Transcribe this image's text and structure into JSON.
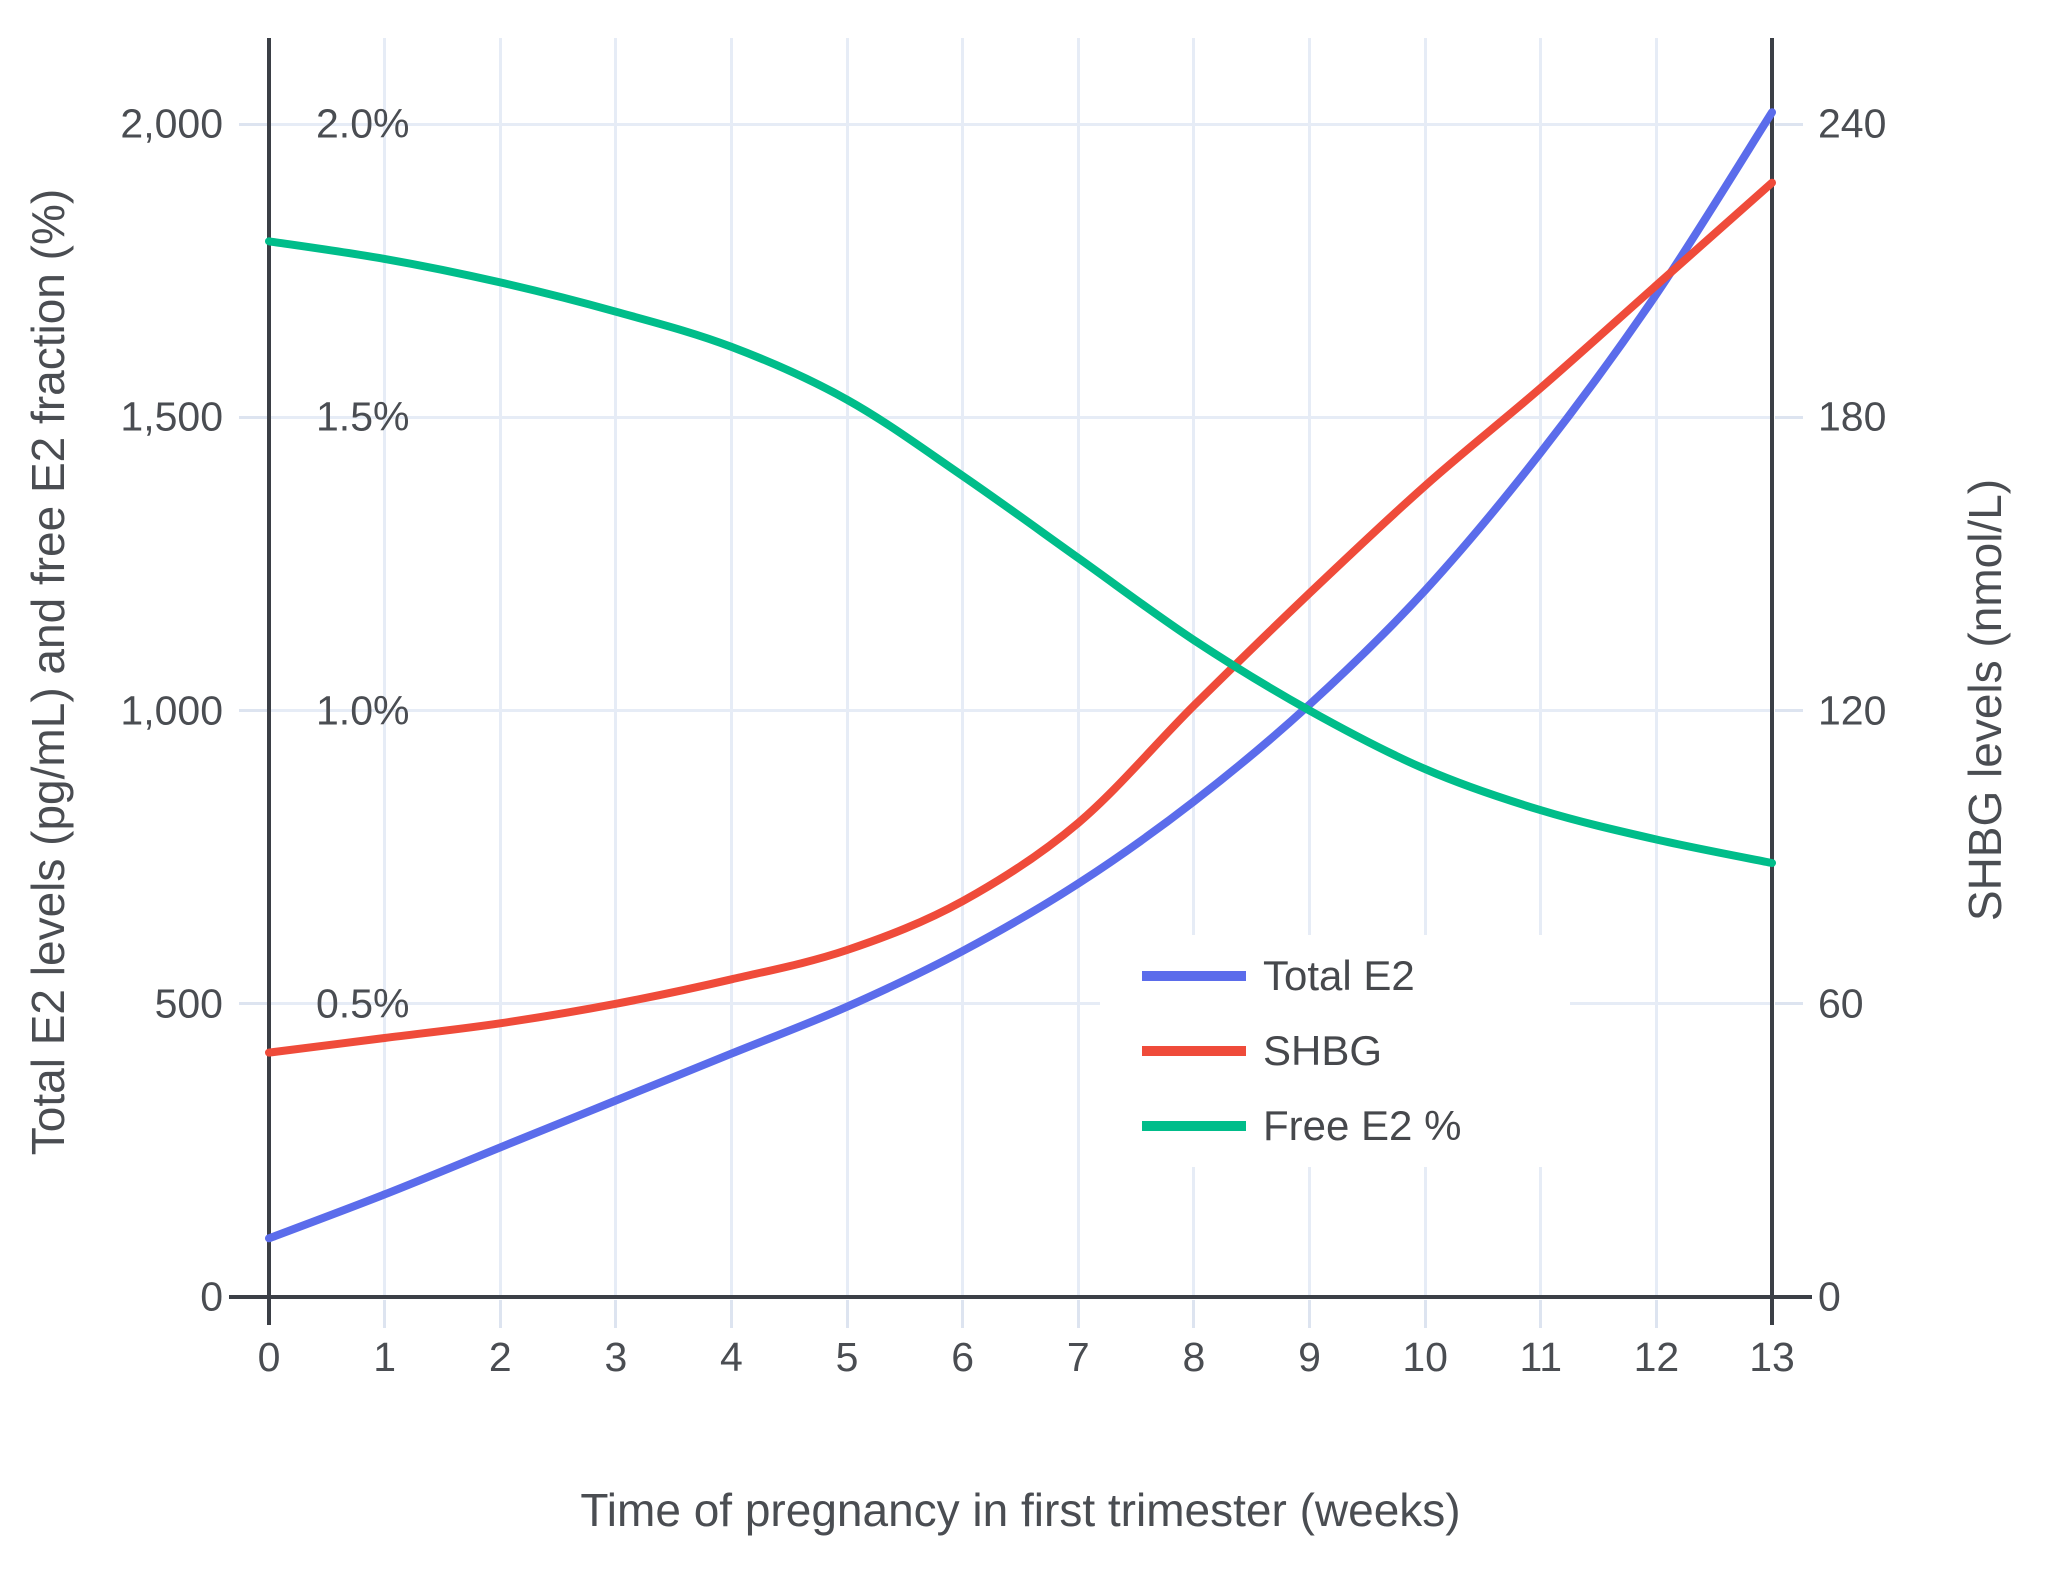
{
  "chart_data": {
    "type": "line",
    "x_title": "Time of pregnancy in first trimester (weeks)",
    "y_left_title": "Total E2 levels (pg/mL) and free E2 fraction (%)",
    "y_right_title": "SHBG levels (nmol/L)",
    "x": [
      0,
      1,
      2,
      3,
      4,
      5,
      6,
      7,
      8,
      9,
      10,
      11,
      12,
      13
    ],
    "x_tick_labels": [
      "0",
      "1",
      "2",
      "3",
      "4",
      "5",
      "6",
      "7",
      "8",
      "9",
      "10",
      "11",
      "12",
      "13"
    ],
    "x_range": [
      0,
      13
    ],
    "y_left_range": [
      0,
      2150
    ],
    "y_right_range": [
      0,
      258
    ],
    "grid": true,
    "legend_position": "inside-bottom-center",
    "y_left_ticks": [
      {
        "v": 0,
        "label": "0"
      },
      {
        "v": 500,
        "label": "500"
      },
      {
        "v": 1000,
        "label": "1,000"
      },
      {
        "v": 1500,
        "label": "1,500"
      },
      {
        "v": 2000,
        "label": "2,000"
      }
    ],
    "y_right_ticks": [
      {
        "v": 0,
        "label": "0"
      },
      {
        "v": 60,
        "label": "60"
      },
      {
        "v": 120,
        "label": "120"
      },
      {
        "v": 180,
        "label": "180"
      },
      {
        "v": 240,
        "label": "240"
      }
    ],
    "percent_labels": [
      {
        "v": 0.5,
        "label": "0.5%"
      },
      {
        "v": 1.0,
        "label": "1.0%"
      },
      {
        "v": 1.5,
        "label": "1.5%"
      },
      {
        "v": 2.0,
        "label": "2.0%"
      }
    ],
    "series": [
      {
        "name": "Total E2",
        "axis": "left",
        "unit": "pg/mL",
        "color": "#5b6ceb",
        "values": [
          100,
          175,
          255,
          335,
          415,
          495,
          590,
          705,
          845,
          1010,
          1205,
          1440,
          1710,
          2020
        ]
      },
      {
        "name": "SHBG",
        "axis": "right",
        "unit": "nmol/L",
        "color": "#ef4b3a",
        "values": [
          50,
          53,
          56,
          60,
          65,
          71,
          81,
          97,
          121,
          144,
          166,
          186,
          207,
          228
        ]
      },
      {
        "name": "Free E2 %",
        "axis": "percent",
        "unit": "%",
        "color": "#00bd8a",
        "values": [
          1.8,
          1.77,
          1.73,
          1.68,
          1.62,
          1.53,
          1.4,
          1.26,
          1.12,
          1.0,
          0.9,
          0.83,
          0.78,
          0.74
        ]
      }
    ]
  }
}
